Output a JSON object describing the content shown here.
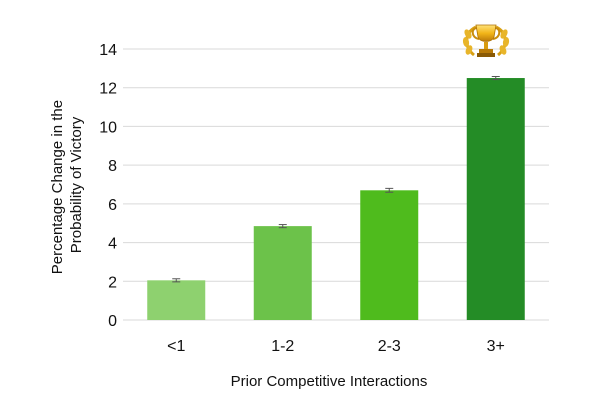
{
  "chart_data": {
    "type": "bar",
    "title": "",
    "xlabel": "Prior Competitive Interactions",
    "ylabel": "Percentage Change in the Probability of Victory",
    "ylabel_lines": [
      "Percentage Change in the",
      "Probability of Victory"
    ],
    "categories": [
      "<1",
      "1-2",
      "2-3",
      "3+"
    ],
    "values": [
      2.05,
      4.85,
      6.7,
      12.5
    ],
    "errors": [
      0.08,
      0.08,
      0.1,
      0.08
    ],
    "ylim": [
      0,
      14
    ],
    "yticks": [
      "0",
      "2",
      "4",
      "6",
      "8",
      "10",
      "12",
      "14"
    ],
    "grid": true,
    "colors": [
      "#8ed16f",
      "#6cc24a",
      "#4fbb1d",
      "#248c26"
    ],
    "annotation_icon": "trophy-icon"
  }
}
